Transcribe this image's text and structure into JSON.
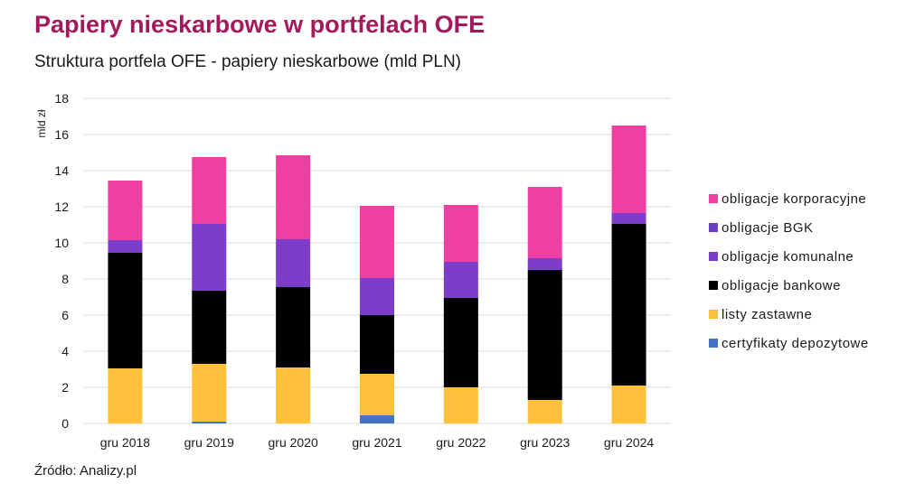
{
  "chart_data": {
    "type": "bar",
    "stacked": true,
    "title": "Papiery nieskarbowe w portfelach OFE",
    "subtitle": "Struktura portfela OFE - papiery nieskarbowe (mld PLN)",
    "ylabel": "mld zł",
    "ylim": [
      0,
      18
    ],
    "yticks": [
      "0",
      "2",
      "4",
      "6",
      "8",
      "10",
      "12",
      "14",
      "16",
      "18"
    ],
    "grid": true,
    "legend_position": "right",
    "categories": [
      "gru 2018",
      "gru 2019",
      "gru 2020",
      "gru 2021",
      "gru 2022",
      "gru 2023",
      "gru 2024"
    ],
    "series": [
      {
        "name": "certyfikaty depozytowe",
        "color": "#4472c4",
        "values": [
          0,
          0.1,
          0,
          0.45,
          0,
          0,
          0
        ]
      },
      {
        "name": "listy zastawne",
        "color": "#ffc03a",
        "values": [
          3.05,
          3.2,
          3.1,
          2.3,
          2.0,
          1.3,
          2.1
        ]
      },
      {
        "name": "obligacje bankowe",
        "color": "#000000",
        "values": [
          6.4,
          4.05,
          4.45,
          3.25,
          4.95,
          7.2,
          8.95
        ]
      },
      {
        "name": "obligacje komunalne",
        "color": "#7e3dc8",
        "values": [
          0.7,
          3.7,
          2.65,
          2.05,
          2.0,
          0.65,
          0.6
        ]
      },
      {
        "name": "obligacje BGK",
        "color": "#6a3fc0",
        "values": [
          0,
          0,
          0,
          0,
          0,
          0,
          0
        ]
      },
      {
        "name": "obligacje korporacyjne",
        "color": "#ee3fa3",
        "values": [
          3.3,
          3.7,
          4.65,
          4.0,
          3.15,
          3.95,
          4.85
        ]
      }
    ],
    "legend_order": [
      "obligacje korporacyjne",
      "obligacje BGK",
      "obligacje komunalne",
      "obligacje bankowe",
      "listy zastawne",
      "certyfikaty depozytowe"
    ]
  },
  "source": "Źródło: Analizy.pl"
}
